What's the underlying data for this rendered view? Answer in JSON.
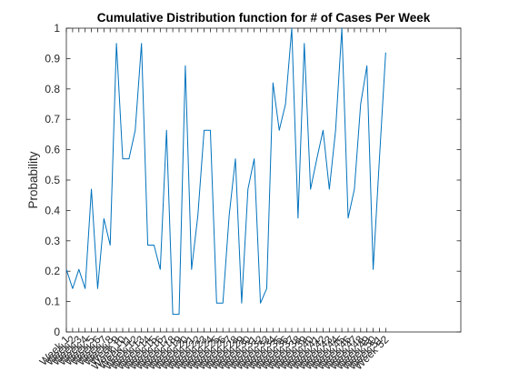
{
  "chart_data": {
    "type": "line",
    "title": "Cumulative Distribution function for # of Cases Per Week",
    "xlabel": "",
    "ylabel": "Probability",
    "ylim": [
      0,
      1
    ],
    "xlim": [
      1,
      64
    ],
    "yticks": [
      "0",
      "0.1",
      "0.2",
      "0.3",
      "0.4",
      "0.5",
      "0.6",
      "0.7",
      "0.8",
      "0.9",
      "1"
    ],
    "categories": [
      "Week 1",
      "Week 2",
      "Week 3",
      "Week 4",
      "Week 5",
      "Week 6",
      "Week 7",
      "Week 8",
      "Week 9",
      "Week 10",
      "Week 11",
      "Week 12",
      "Week 13",
      "Week 14",
      "Week 15",
      "Week 16",
      "Week 17",
      "Week 18",
      "Week 19",
      "Week 20",
      "Week 21",
      "Week 22",
      "Week 23",
      "Week 24",
      "Week 25",
      "Week 26",
      "Week 27",
      "Week 28",
      "Week 29",
      "Week 30",
      "Week 31",
      "Week 32",
      "Week 33",
      "Week 34",
      "Week 35",
      "Week 36",
      "Week 37",
      "Week 38",
      "Week 39",
      "Week 40",
      "Week 41",
      "Week 42",
      "Week 43",
      "Week 44",
      "Week 45",
      "Week 46",
      "Week 47",
      "Week 48",
      "Week 49",
      "Week 50",
      "Week 51",
      "Week 52"
    ],
    "series": [
      {
        "values": [
          0.206,
          0.143,
          0.206,
          0.143,
          0.47,
          0.143,
          0.373,
          0.286,
          0.95,
          0.57,
          0.57,
          0.664,
          0.95,
          0.286,
          0.286,
          0.206,
          0.664,
          0.058,
          0.058,
          0.876,
          0.206,
          0.383,
          0.664,
          0.664,
          0.095,
          0.095,
          0.383,
          0.57,
          0.095,
          0.47,
          0.57,
          0.095,
          0.143,
          0.82,
          0.664,
          0.75,
          1.0,
          0.375,
          0.95,
          0.47,
          0.57,
          0.664,
          0.47,
          0.664,
          1.0,
          0.375,
          0.47,
          0.75,
          0.876,
          0.206,
          0.57,
          0.92
        ],
        "color": "#0072BD"
      }
    ],
    "grid": false,
    "legend": "none"
  }
}
